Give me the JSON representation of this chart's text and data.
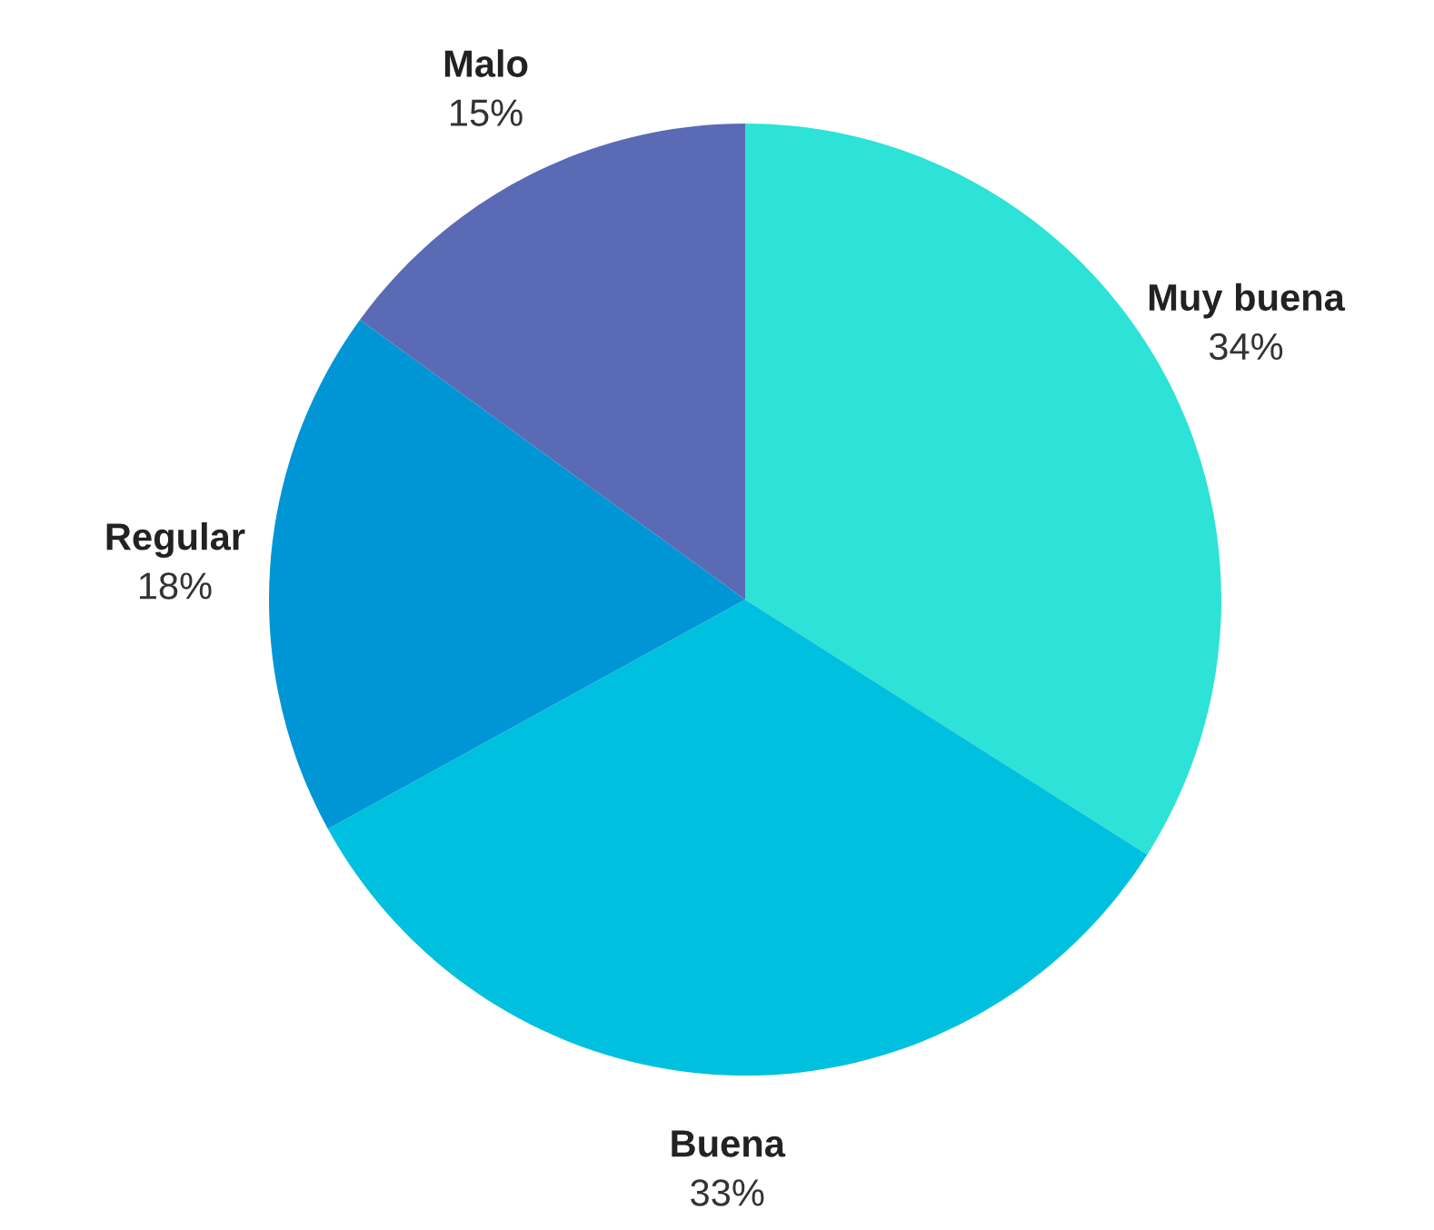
{
  "chart_data": {
    "type": "pie",
    "categories": [
      "Muy buena",
      "Buena",
      "Regular",
      "Malo"
    ],
    "values": [
      34,
      33,
      18,
      15
    ],
    "colors": [
      "#2de2d6",
      "#00c0e0",
      "#0096d6",
      "#5a6ab4"
    ],
    "value_labels": [
      "34%",
      "33%",
      "18%",
      "15%"
    ]
  }
}
